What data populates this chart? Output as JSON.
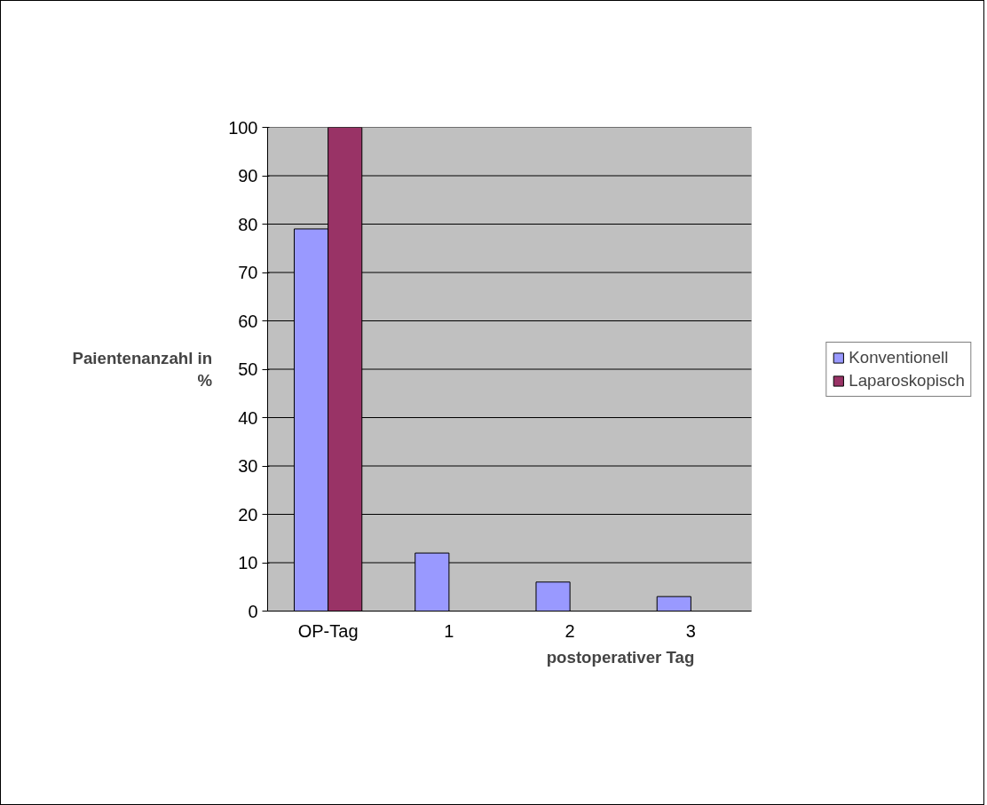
{
  "chart_data": {
    "type": "bar",
    "xlabel": "postoperativer Tag",
    "ylabel": "Paientenanzahl in %",
    "categories": [
      "OP-Tag",
      "1",
      "2",
      "3"
    ],
    "series": [
      {
        "name": "Konventionell",
        "color": "#9999ff",
        "values": [
          79,
          12,
          6,
          3
        ]
      },
      {
        "name": "Laparoskopisch",
        "color": "#993366",
        "values": [
          100,
          null,
          null,
          null
        ]
      }
    ],
    "ylim": [
      0,
      100
    ],
    "yticks": [
      0,
      10,
      20,
      30,
      40,
      50,
      60,
      70,
      80,
      90,
      100
    ],
    "grid": "y",
    "legend": "right"
  }
}
